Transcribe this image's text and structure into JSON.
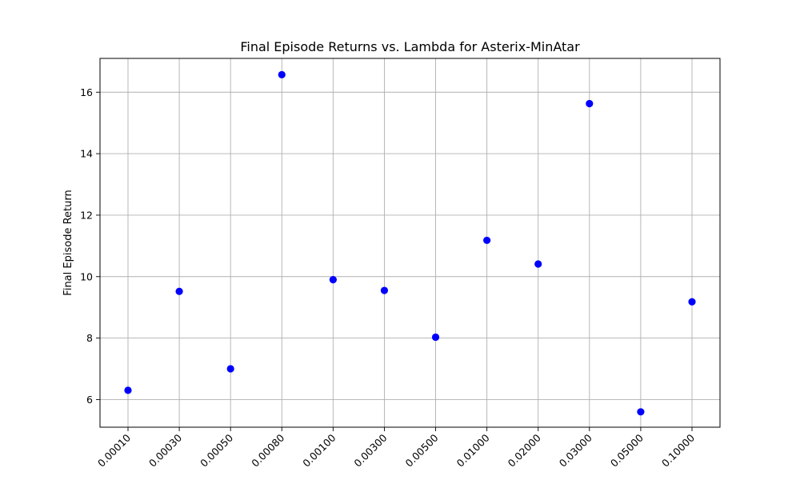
{
  "chart_data": {
    "type": "scatter",
    "title": "Final Episode Returns vs. Lambda for Asterix-MinAtar",
    "xlabel": "",
    "ylabel": "Final Episode Return",
    "categories": [
      "0.00010",
      "0.00030",
      "0.00050",
      "0.00080",
      "0.00100",
      "0.00300",
      "0.00500",
      "0.01000",
      "0.02000",
      "0.03000",
      "0.05000",
      "0.10000"
    ],
    "values": [
      6.3,
      9.52,
      7.0,
      16.57,
      9.9,
      9.55,
      8.03,
      11.18,
      10.41,
      15.63,
      5.6,
      9.18
    ],
    "ylim": [
      5.1,
      17.1
    ],
    "yticks": [
      6,
      8,
      10,
      12,
      14,
      16
    ],
    "grid": true,
    "colors": {
      "marker": "#0000ff",
      "grid": "#b0b0b0",
      "axis": "#000000"
    }
  }
}
